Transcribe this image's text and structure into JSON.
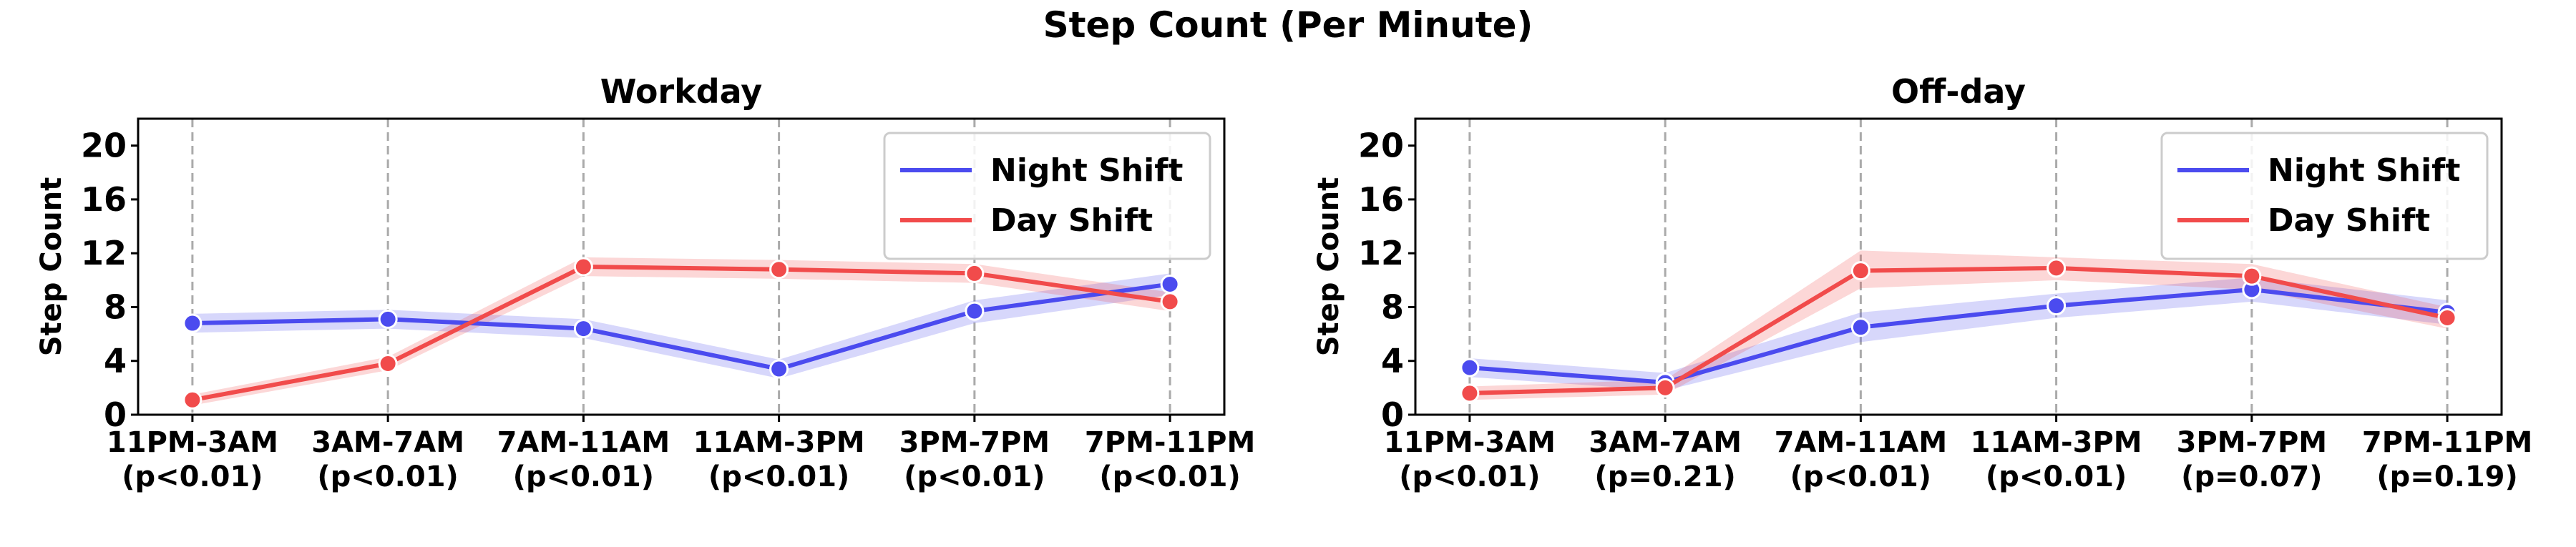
{
  "figure": {
    "title": "Step Count (Per Minute)"
  },
  "colors": {
    "night": "#4b4bef",
    "day": "#f14b4b"
  },
  "chart_data": [
    {
      "type": "line",
      "title": "Workday",
      "xlabel": "",
      "ylabel": "Step Count",
      "ylim": [
        0,
        22
      ],
      "yticks": [
        0,
        4,
        8,
        12,
        16,
        20
      ],
      "grid": "vertical-dashed",
      "legend": "top-right",
      "categories": [
        "11PM-3AM",
        "3AM-7AM",
        "7AM-11AM",
        "11AM-3PM",
        "3PM-7PM",
        "7PM-11PM"
      ],
      "pvalues": [
        "(p<0.01)",
        "(p<0.01)",
        "(p<0.01)",
        "(p<0.01)",
        "(p<0.01)",
        "(p<0.01)"
      ],
      "series": [
        {
          "name": "Night Shift",
          "color": "#4b4bef",
          "values": [
            6.8,
            7.1,
            6.4,
            3.4,
            7.7,
            9.7
          ],
          "lower": [
            6.1,
            6.4,
            5.7,
            2.7,
            6.8,
            8.9
          ],
          "upper": [
            7.5,
            7.8,
            7.1,
            4.1,
            8.5,
            10.5
          ]
        },
        {
          "name": "Day Shift",
          "color": "#f14b4b",
          "values": [
            1.1,
            3.8,
            11.0,
            10.8,
            10.5,
            8.4
          ],
          "lower": [
            0.7,
            3.3,
            10.3,
            10.1,
            9.8,
            7.7
          ],
          "upper": [
            1.5,
            4.3,
            11.7,
            11.5,
            11.2,
            9.1
          ]
        }
      ]
    },
    {
      "type": "line",
      "title": "Off-day",
      "xlabel": "",
      "ylabel": "Step Count",
      "ylim": [
        0,
        22
      ],
      "yticks": [
        0,
        4,
        8,
        12,
        16,
        20
      ],
      "grid": "vertical-dashed",
      "legend": "top-right",
      "categories": [
        "11PM-3AM",
        "3AM-7AM",
        "7AM-11AM",
        "11AM-3PM",
        "3PM-7PM",
        "7PM-11PM"
      ],
      "pvalues": [
        "(p<0.01)",
        "(p=0.21)",
        "(p<0.01)",
        "(p<0.01)",
        "(p=0.07)",
        "(p=0.19)"
      ],
      "series": [
        {
          "name": "Night Shift",
          "color": "#4b4bef",
          "values": [
            3.5,
            2.4,
            6.5,
            8.1,
            9.3,
            7.6
          ],
          "lower": [
            2.8,
            1.8,
            5.4,
            7.2,
            8.4,
            6.7
          ],
          "upper": [
            4.2,
            3.1,
            7.6,
            9.0,
            10.2,
            8.5
          ]
        },
        {
          "name": "Day Shift",
          "color": "#f14b4b",
          "values": [
            1.6,
            2.0,
            10.7,
            10.9,
            10.3,
            7.2
          ],
          "lower": [
            1.1,
            1.5,
            9.4,
            10.0,
            9.3,
            6.4
          ],
          "upper": [
            2.1,
            2.6,
            12.2,
            11.7,
            11.2,
            8.0
          ]
        }
      ]
    }
  ]
}
